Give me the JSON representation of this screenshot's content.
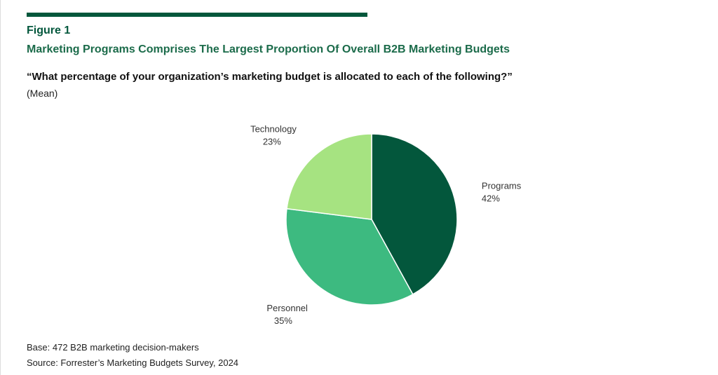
{
  "figure_label": "Figure 1",
  "chart_data": {
    "type": "pie",
    "title": "Marketing Programs Comprises The Largest Proportion Of Overall B2B Marketing Budgets",
    "subtitle": "“What percentage of your organization’s marketing budget is allocated to each of the following?”",
    "note": "(Mean)",
    "slices": [
      {
        "label": "Programs",
        "value": 42,
        "value_label": "42%",
        "color": "#03573c"
      },
      {
        "label": "Personnel",
        "value": 35,
        "value_label": "35%",
        "color": "#3dba80"
      },
      {
        "label": "Technology",
        "value": 23,
        "value_label": "23%",
        "color": "#a6e381"
      }
    ],
    "start": "top",
    "direction": "clockwise"
  },
  "footer": {
    "base": "Base: 472 B2B marketing decision-makers",
    "source": "Source: Forrester’s Marketing Budgets Survey, 2024"
  },
  "accent_color": "#03573c"
}
